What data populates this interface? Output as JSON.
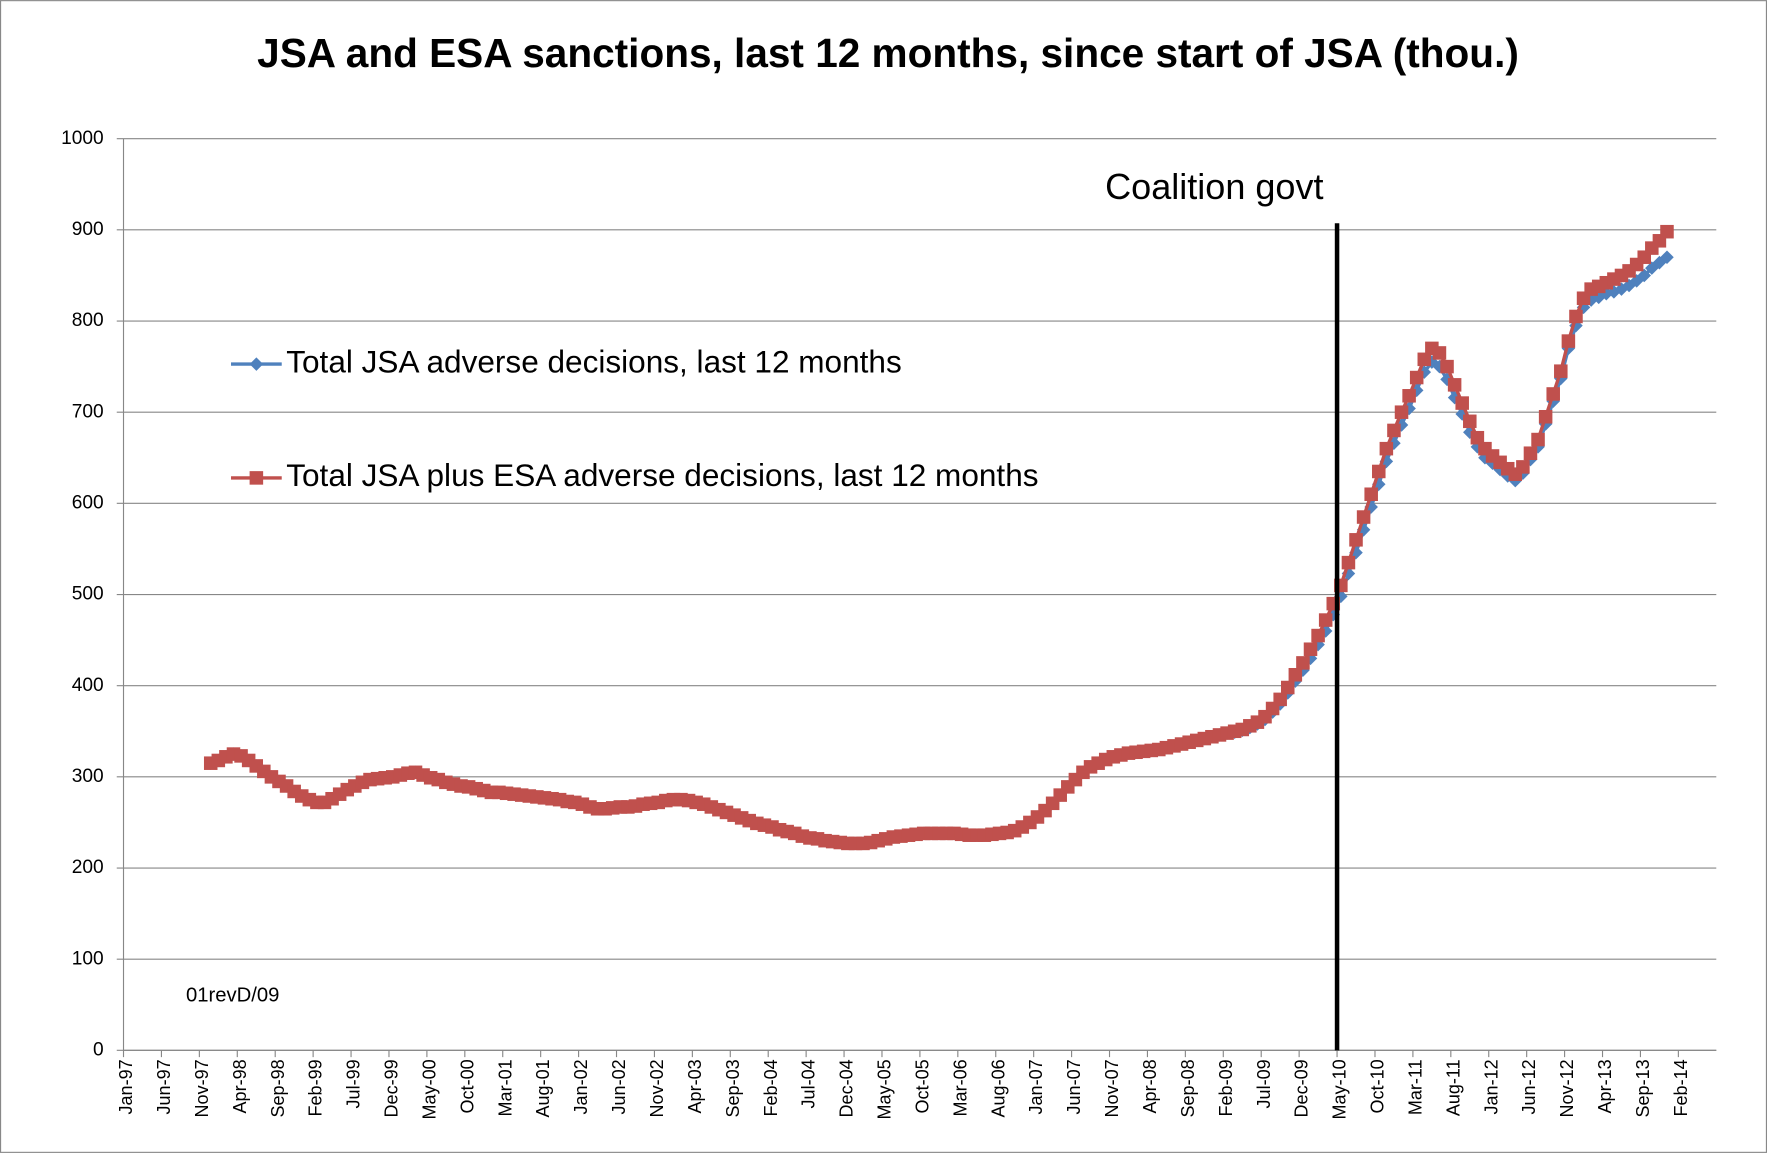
{
  "chart_data": {
    "type": "line",
    "title": "JSA and ESA sanctions, last 12 months, since start of JSA (thou.)",
    "categories": [
      "Jan-97",
      null,
      null,
      null,
      null,
      "Jun-97",
      null,
      null,
      null,
      null,
      "Nov-97",
      null,
      null,
      null,
      null,
      "Apr-98",
      null,
      null,
      null,
      null,
      "Sep-98",
      null,
      null,
      null,
      null,
      "Feb-99",
      null,
      null,
      null,
      null,
      "Jul-99",
      null,
      null,
      null,
      null,
      "Dec-99",
      null,
      null,
      null,
      null,
      "May-00",
      null,
      null,
      null,
      null,
      "Oct-00",
      null,
      null,
      null,
      null,
      "Mar-01",
      null,
      null,
      null,
      null,
      "Aug-01",
      null,
      null,
      null,
      null,
      "Jan-02",
      null,
      null,
      null,
      null,
      "Jun-02",
      null,
      null,
      null,
      null,
      "Nov-02",
      null,
      null,
      null,
      null,
      "Apr-03",
      null,
      null,
      null,
      null,
      "Sep-03",
      null,
      null,
      null,
      null,
      "Feb-04",
      null,
      null,
      null,
      null,
      "Jul-04",
      null,
      null,
      null,
      null,
      "Dec-04",
      null,
      null,
      null,
      null,
      "May-05",
      null,
      null,
      null,
      null,
      "Oct-05",
      null,
      null,
      null,
      null,
      "Mar-06",
      null,
      null,
      null,
      null,
      "Aug-06",
      null,
      null,
      null,
      null,
      "Jan-07",
      null,
      null,
      null,
      null,
      "Jun-07",
      null,
      null,
      null,
      null,
      "Nov-07",
      null,
      null,
      null,
      null,
      "Apr-08",
      null,
      null,
      null,
      null,
      "Sep-08",
      null,
      null,
      null,
      null,
      "Feb-09",
      null,
      null,
      null,
      null,
      "Jul-09",
      null,
      null,
      null,
      null,
      "Dec-09",
      null,
      null,
      null,
      null,
      "May-10",
      null,
      null,
      null,
      null,
      "Oct-10",
      null,
      null,
      null,
      null,
      "Mar-11",
      null,
      null,
      null,
      null,
      "Aug-11",
      null,
      null,
      null,
      null,
      "Jan-12",
      null,
      null,
      null,
      null,
      "Jun-12",
      null,
      null,
      null,
      null,
      "Nov-12",
      null,
      null,
      null,
      null,
      "Apr-13",
      null,
      null,
      null,
      null,
      "Sep-13",
      null,
      null,
      null,
      null,
      "Feb-14",
      null,
      null,
      null,
      null
    ],
    "series": [
      {
        "name": "Total JSA adverse decisions, last 12 months",
        "color": "#4f81bd",
        "marker": "diamond",
        "values": [
          null,
          null,
          null,
          null,
          null,
          null,
          null,
          null,
          null,
          null,
          null,
          315,
          318,
          322,
          325,
          323,
          318,
          312,
          306,
          300,
          295,
          290,
          284,
          279,
          275,
          272,
          272,
          276,
          281,
          286,
          290,
          294,
          297,
          298,
          299,
          300,
          302,
          304,
          305,
          302,
          299,
          297,
          294,
          292,
          290,
          289,
          287,
          285,
          283,
          283,
          282,
          281,
          280,
          279,
          278,
          277,
          276,
          275,
          273,
          272,
          270,
          267,
          265,
          265,
          266,
          267,
          267,
          268,
          270,
          271,
          272,
          274,
          275,
          275,
          274,
          272,
          270,
          267,
          264,
          261,
          258,
          255,
          252,
          249,
          247,
          245,
          242,
          240,
          238,
          235,
          233,
          232,
          230,
          229,
          228,
          227,
          227,
          227,
          228,
          230,
          232,
          234,
          235,
          236,
          237,
          238,
          238,
          238,
          238,
          238,
          237,
          236,
          236,
          236,
          237,
          238,
          239,
          241,
          245,
          250,
          256,
          263,
          271,
          280,
          289,
          297,
          305,
          311,
          315,
          319,
          322,
          324,
          326,
          327,
          328,
          329,
          330,
          332,
          334,
          336,
          338,
          340,
          342,
          344,
          346,
          348,
          349,
          351,
          354,
          358,
          363,
          371,
          380,
          392,
          405,
          417,
          430,
          445,
          460,
          478,
          498,
          523,
          546,
          571,
          596,
          621,
          646,
          666,
          686,
          704,
          724,
          744,
          755,
          750,
          736,
          716,
          698,
          678,
          662,
          650,
          644,
          637,
          630,
          625,
          633,
          648,
          662,
          687,
          712,
          737,
          770,
          795,
          815,
          823,
          826,
          830,
          832,
          835,
          839,
          844,
          850,
          858,
          864,
          870,
          null,
          null,
          null,
          null,
          null,
          null
        ]
      },
      {
        "name": "Total JSA plus ESA adverse decisions, last 12 months",
        "color": "#c0504d",
        "marker": "square",
        "values": [
          null,
          null,
          null,
          null,
          null,
          null,
          null,
          null,
          null,
          null,
          null,
          315,
          318,
          322,
          325,
          323,
          318,
          312,
          306,
          300,
          295,
          290,
          284,
          279,
          275,
          272,
          272,
          276,
          281,
          286,
          290,
          294,
          297,
          298,
          299,
          300,
          302,
          304,
          305,
          302,
          299,
          297,
          294,
          292,
          290,
          289,
          287,
          285,
          283,
          283,
          282,
          281,
          280,
          279,
          278,
          277,
          276,
          275,
          273,
          272,
          270,
          267,
          265,
          265,
          266,
          267,
          267,
          268,
          270,
          271,
          272,
          274,
          275,
          275,
          274,
          272,
          270,
          267,
          264,
          261,
          258,
          255,
          252,
          249,
          247,
          245,
          242,
          240,
          238,
          235,
          233,
          232,
          230,
          229,
          228,
          227,
          227,
          227,
          228,
          230,
          232,
          234,
          235,
          236,
          237,
          238,
          238,
          238,
          238,
          238,
          237,
          236,
          236,
          236,
          237,
          238,
          239,
          241,
          245,
          250,
          256,
          263,
          271,
          280,
          289,
          297,
          305,
          311,
          315,
          319,
          322,
          324,
          326,
          327,
          328,
          329,
          330,
          332,
          334,
          336,
          338,
          340,
          342,
          344,
          346,
          348,
          350,
          352,
          356,
          360,
          366,
          375,
          385,
          398,
          412,
          425,
          440,
          455,
          472,
          490,
          510,
          535,
          560,
          585,
          610,
          635,
          660,
          680,
          700,
          718,
          738,
          758,
          770,
          765,
          750,
          730,
          710,
          690,
          672,
          660,
          652,
          645,
          638,
          632,
          640,
          655,
          670,
          695,
          720,
          745,
          778,
          805,
          825,
          835,
          838,
          842,
          846,
          850,
          855,
          862,
          870,
          880,
          888,
          898,
          null,
          null,
          null,
          null,
          null,
          null
        ]
      }
    ],
    "ylim": [
      0,
      1000
    ],
    "yticks": [
      0,
      100,
      200,
      300,
      400,
      500,
      600,
      700,
      800,
      900,
      1000
    ],
    "grid": true,
    "legend": "upper left",
    "annotations": [
      {
        "text": "Coalition govt",
        "x": "May-10",
        "color": "#000000"
      }
    ],
    "note": "01revD/09"
  }
}
